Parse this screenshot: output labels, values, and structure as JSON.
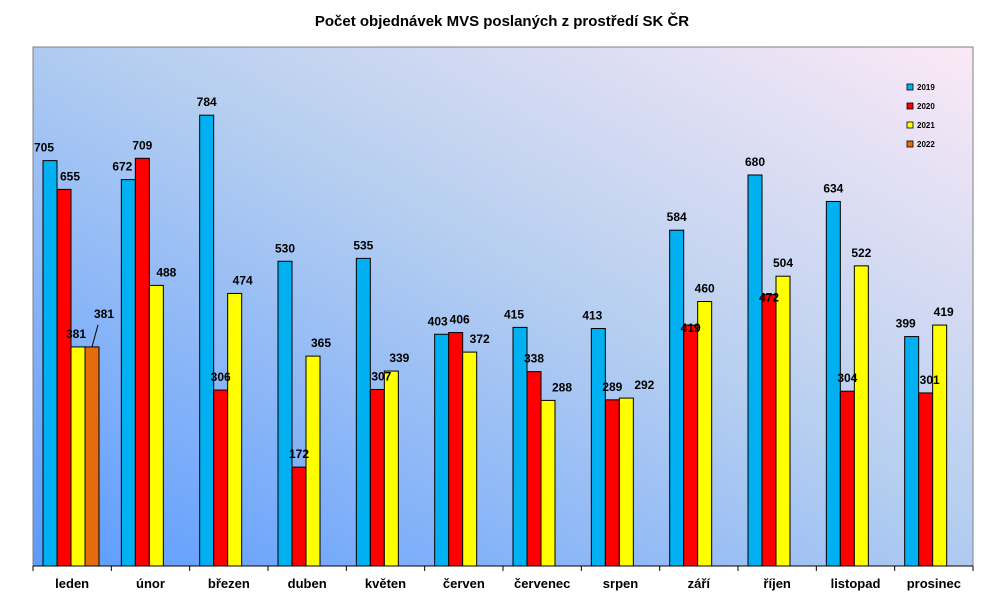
{
  "chart_data": {
    "type": "bar",
    "title": "Počet objednávek MVS poslaných z prostředí SK ČR",
    "xlabel": "",
    "ylabel": "",
    "ylim": [
      0,
      880
    ],
    "grid": false,
    "legend_position": "top-right",
    "categories": [
      "leden",
      "únor",
      "březen",
      "duben",
      "květen",
      "červen",
      "červenec",
      "srpen",
      "září",
      "říjen",
      "listopad",
      "prosinec"
    ],
    "series": [
      {
        "name": "2019",
        "color": "#00b0f0",
        "values": [
          705,
          672,
          784,
          530,
          535,
          403,
          415,
          413,
          584,
          680,
          634,
          399
        ]
      },
      {
        "name": "2020",
        "color": "#ff0000",
        "values": [
          655,
          709,
          306,
          172,
          307,
          406,
          338,
          289,
          419,
          472,
          304,
          301
        ]
      },
      {
        "name": "2021",
        "color": "#ffff00",
        "values": [
          381,
          488,
          474,
          365,
          339,
          372,
          288,
          292,
          460,
          504,
          522,
          419
        ]
      },
      {
        "name": "2022",
        "color": "#e46c0a",
        "values": [
          381,
          null,
          null,
          null,
          null,
          null,
          null,
          null,
          null,
          null,
          null,
          null
        ]
      }
    ]
  }
}
